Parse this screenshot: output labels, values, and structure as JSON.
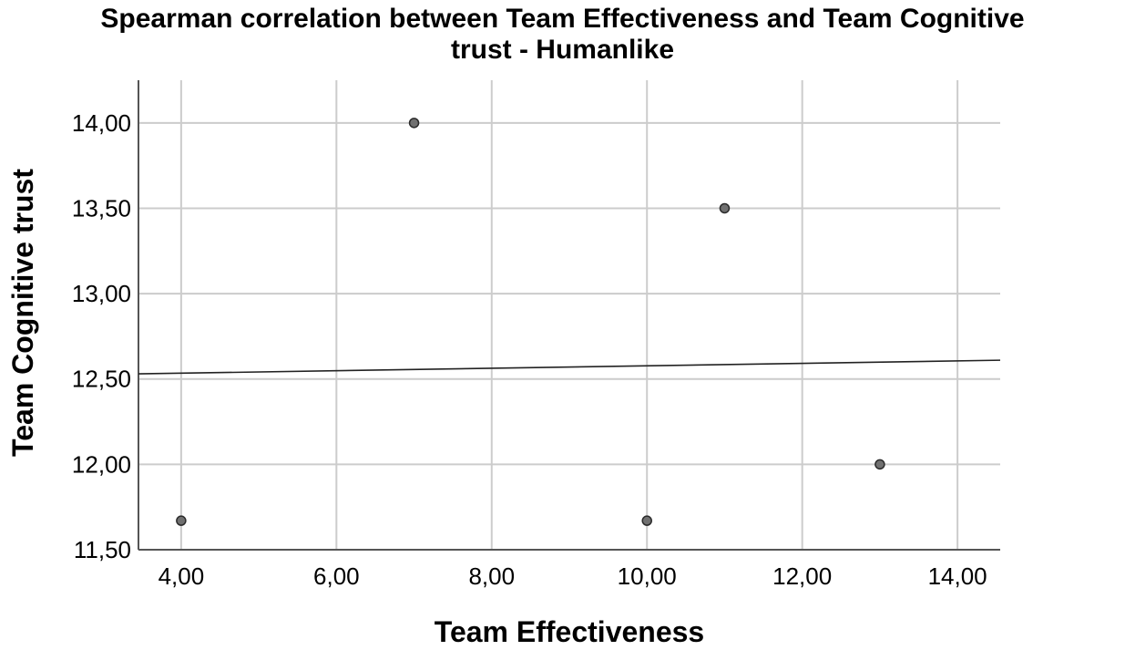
{
  "chart_data": {
    "type": "scatter",
    "title_lines": [
      "Spearman correlation between Team Effectiveness and Team Cognitive",
      "trust - Humanlike"
    ],
    "xlabel": "Team Effectiveness",
    "ylabel": "Team Cognitive trust",
    "xlim": [
      3.45,
      14.55
    ],
    "ylim": [
      11.5,
      14.25
    ],
    "x_ticks": [
      4,
      6,
      8,
      10,
      12,
      14
    ],
    "x_tick_labels": [
      "4,00",
      "6,00",
      "8,00",
      "10,00",
      "12,00",
      "14,00"
    ],
    "y_ticks": [
      11.5,
      12,
      12.5,
      13,
      13.5,
      14
    ],
    "y_tick_labels": [
      "11,50",
      "12,00",
      "12,50",
      "13,00",
      "13,50",
      "14,00"
    ],
    "points": [
      {
        "x": 4,
        "y": 11.67
      },
      {
        "x": 7,
        "y": 14.0
      },
      {
        "x": 10,
        "y": 11.67
      },
      {
        "x": 11,
        "y": 13.5
      },
      {
        "x": 13,
        "y": 12.0
      }
    ],
    "fit_line": {
      "x": [
        3.45,
        14.55
      ],
      "y": [
        12.53,
        12.61
      ]
    },
    "grid": true,
    "colors": {
      "point_fill": "#707070",
      "point_stroke": "#2a2a2a",
      "grid": "#cccccc",
      "axis": "#555555",
      "fit_line": "#222222"
    }
  }
}
